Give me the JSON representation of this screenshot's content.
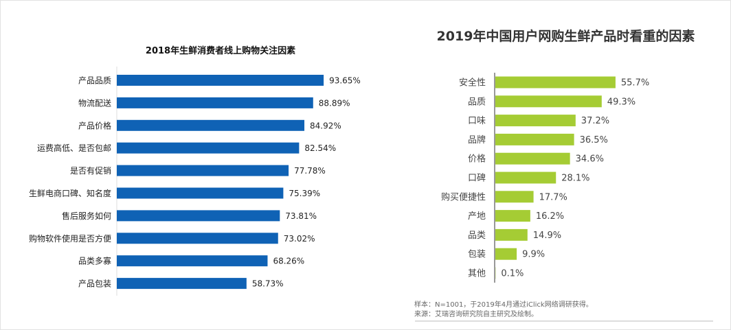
{
  "chart_data": [
    {
      "type": "bar",
      "orientation": "horizontal",
      "title": "2018年生鲜消费者线上购物关注因素",
      "categories": [
        "产品品质",
        "物流配送",
        "产品价格",
        "运费高低、是否包邮",
        "是否有促销",
        "生鲜电商口碑、知名度",
        "售后服务如何",
        "购物软件使用是否方便",
        "品类多寡",
        "产品包装"
      ],
      "values": [
        93.65,
        88.89,
        84.92,
        82.54,
        77.78,
        75.39,
        73.81,
        73.02,
        68.26,
        58.73
      ],
      "value_labels": [
        "93.65%",
        "88.89%",
        "84.92%",
        "82.54%",
        "77.78%",
        "75.39%",
        "73.81%",
        "73.02%",
        "68.26%",
        "58.73%"
      ],
      "unit": "%",
      "color": "#0f62b5",
      "grid": false
    },
    {
      "type": "bar",
      "orientation": "horizontal",
      "title": "2019年中国用户网购生鲜产品时看重的因素",
      "title_lines": [
        "2019年中国用户网购生鲜产品时看重的",
        "因素"
      ],
      "categories": [
        "安全性",
        "品质",
        "口味",
        "品牌",
        "价格",
        "口碑",
        "购买便捷性",
        "产地",
        "品类",
        "包装",
        "其他"
      ],
      "values": [
        55.7,
        49.3,
        37.2,
        36.5,
        34.6,
        28.1,
        17.7,
        16.2,
        14.9,
        9.9,
        0.1
      ],
      "value_labels": [
        "55.7%",
        "49.3%",
        "37.2%",
        "36.5%",
        "34.6%",
        "28.1%",
        "17.7%",
        "16.2%",
        "14.9%",
        "9.9%",
        "0.1%"
      ],
      "unit": "%",
      "color": "#a5cc34",
      "grid": false,
      "notes": [
        "样本：N=1001，于2019年4月通过iClick网络调研获得。",
        "来源：艾瑞咨询研究院自主研究及绘制。"
      ]
    }
  ]
}
